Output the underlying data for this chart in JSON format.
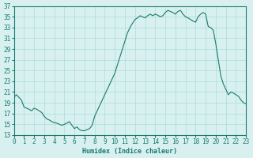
{
  "xlabel": "Humidex (Indice chaleur)",
  "ylabel": "",
  "xlim": [
    0,
    23
  ],
  "ylim": [
    13,
    37
  ],
  "yticks": [
    13,
    15,
    17,
    19,
    21,
    23,
    25,
    27,
    29,
    31,
    33,
    35,
    37
  ],
  "xticks": [
    0,
    1,
    2,
    3,
    4,
    5,
    6,
    7,
    8,
    9,
    10,
    11,
    12,
    13,
    14,
    15,
    16,
    17,
    18,
    19,
    20,
    21,
    22,
    23
  ],
  "line_color": "#1a7a6e",
  "bg_color": "#d8f0f0",
  "grid_color": "#aadddd",
  "x": [
    0,
    0.25,
    0.5,
    0.75,
    1,
    1.25,
    1.5,
    1.75,
    2,
    2.25,
    2.5,
    2.75,
    3,
    3.25,
    3.5,
    3.75,
    4,
    4.25,
    4.5,
    4.75,
    5,
    5.25,
    5.5,
    5.75,
    6,
    6.25,
    6.5,
    6.75,
    7,
    7.25,
    7.5,
    7.75,
    8,
    8.25,
    8.5,
    8.75,
    9,
    9.25,
    9.5,
    9.75,
    10,
    10.25,
    10.5,
    10.75,
    11,
    11.25,
    11.5,
    11.75,
    12,
    12.25,
    12.5,
    12.75,
    13,
    13.25,
    13.5,
    13.75,
    14,
    14.25,
    14.5,
    14.75,
    15,
    15.25,
    15.5,
    15.75,
    16,
    16.25,
    16.5,
    16.75,
    17,
    17.25,
    17.5,
    17.75,
    18,
    18.25,
    18.5,
    18.75,
    19,
    19.25,
    19.5,
    19.75,
    20,
    20.25,
    20.5,
    20.75,
    21,
    21.25,
    21.5,
    21.75,
    22,
    22.25,
    22.5,
    22.75,
    23
  ],
  "y": [
    20,
    20.5,
    20,
    19.5,
    18.2,
    18,
    17.8,
    17.5,
    18,
    17.8,
    17.5,
    17.2,
    16.5,
    16,
    15.8,
    15.5,
    15.3,
    15.2,
    15.0,
    14.8,
    15.0,
    15.2,
    15.5,
    14.8,
    14.2,
    14.5,
    14.0,
    13.8,
    13.8,
    14.0,
    14.2,
    14.8,
    16.5,
    17.5,
    18.5,
    19.5,
    20.5,
    21.5,
    22.5,
    23.5,
    24.5,
    26.0,
    27.5,
    29.0,
    30.5,
    32.0,
    33.0,
    33.8,
    34.5,
    34.8,
    35.2,
    35.0,
    34.8,
    35.2,
    35.5,
    35.2,
    35.5,
    35.3,
    35.0,
    35.2,
    35.8,
    36.2,
    36.0,
    35.8,
    35.5,
    36.0,
    36.2,
    35.5,
    35.0,
    34.8,
    34.5,
    34.2,
    34.0,
    35.0,
    35.5,
    35.8,
    35.5,
    33.2,
    33.0,
    32.5,
    30.0,
    27.0,
    24.0,
    22.5,
    21.5,
    20.5,
    21.0,
    20.8,
    20.5,
    20.2,
    19.5,
    19.0,
    18.8
  ]
}
